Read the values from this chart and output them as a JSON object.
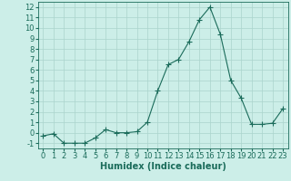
{
  "x": [
    0,
    1,
    2,
    3,
    4,
    5,
    6,
    7,
    8,
    9,
    10,
    11,
    12,
    13,
    14,
    15,
    16,
    17,
    18,
    19,
    20,
    21,
    22,
    23
  ],
  "y": [
    -0.3,
    -0.1,
    -1.0,
    -1.0,
    -1.0,
    -0.5,
    0.3,
    0.0,
    0.0,
    0.1,
    1.0,
    4.0,
    6.5,
    7.0,
    8.7,
    10.8,
    12.0,
    9.4,
    5.0,
    3.3,
    0.8,
    0.8,
    0.9,
    2.3
  ],
  "line_color": "#1a6b5a",
  "marker": "+",
  "marker_size": 4,
  "bg_color": "#cceee8",
  "grid_color": "#aad4cc",
  "xlabel": "Humidex (Indice chaleur)",
  "xlabel_fontsize": 7,
  "tick_fontsize": 6,
  "xlim": [
    -0.5,
    23.5
  ],
  "ylim": [
    -1.5,
    12.5
  ],
  "yticks": [
    -1,
    0,
    1,
    2,
    3,
    4,
    5,
    6,
    7,
    8,
    9,
    10,
    11,
    12
  ],
  "xticks": [
    0,
    1,
    2,
    3,
    4,
    5,
    6,
    7,
    8,
    9,
    10,
    11,
    12,
    13,
    14,
    15,
    16,
    17,
    18,
    19,
    20,
    21,
    22,
    23
  ]
}
